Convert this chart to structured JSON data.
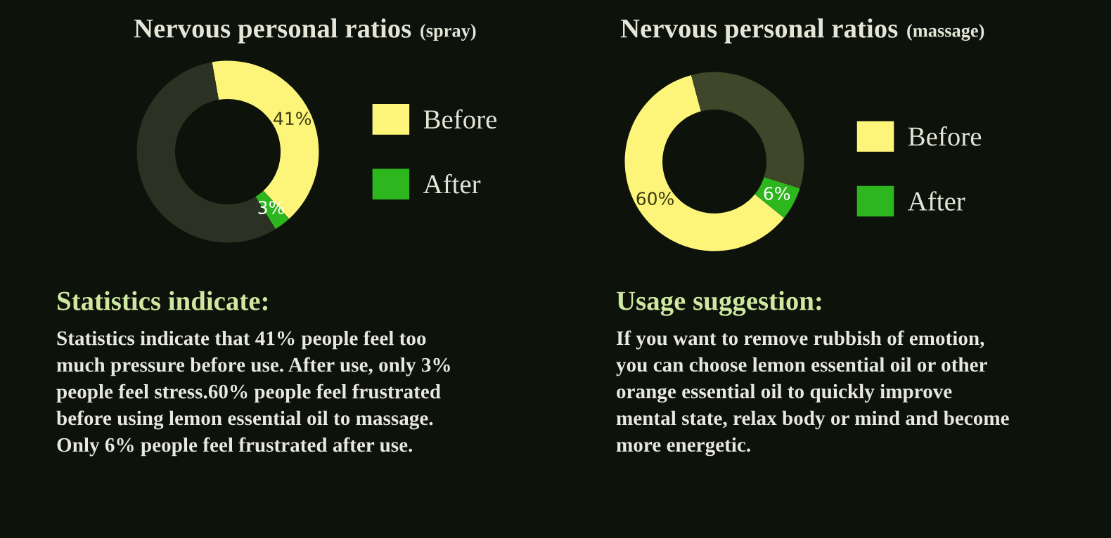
{
  "chart_data": [
    {
      "type": "donut",
      "title": "Nervous personal ratios",
      "subtitle": "(spray)",
      "categories": [
        "Before",
        "After",
        null
      ],
      "values": [
        41,
        3,
        56
      ],
      "colors": [
        "#fdf57a",
        "#2db61e",
        "#2b3223"
      ],
      "value_labels": [
        "41%",
        "3%",
        null
      ],
      "legend": "right"
    },
    {
      "type": "donut",
      "title": "Nervous personal ratios",
      "subtitle": "(massage)",
      "categories": [
        "Before",
        "After",
        null
      ],
      "values": [
        60,
        6,
        34
      ],
      "colors": [
        "#fdf57a",
        "#2db61e",
        "#3f4629"
      ],
      "value_labels": [
        "60%",
        "6%",
        null
      ],
      "legend": "right"
    },
    {
      "type": "other",
      "title": "Statistics indicate:",
      "annotations": [
        "Statistics indicate that 41% people feel too",
        "much pressure before use. After use, only 3%",
        "people feel stress.60% people feel frustrated",
        "before using lemon essential oil to massage.",
        "Only 6% people feel frustrated after use."
      ]
    },
    {
      "type": "other",
      "title": "Usage suggestion:",
      "annotations": [
        "If you want to remove rubbish of emotion,",
        "you can choose lemon essential oil or other",
        "orange essential oil to quickly improve",
        "mental state, relax body or mind and become",
        "more energetic."
      ]
    }
  ]
}
